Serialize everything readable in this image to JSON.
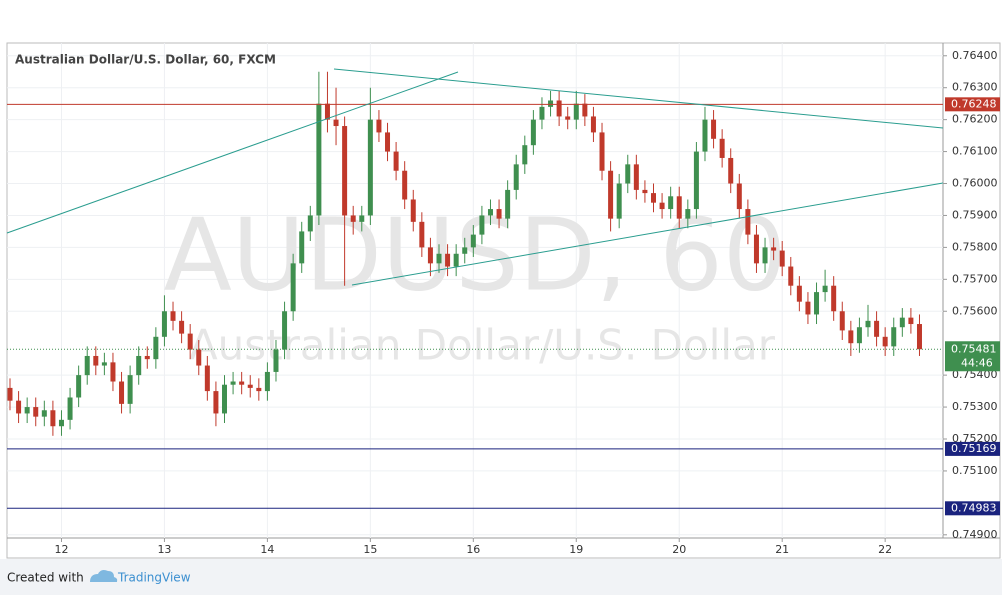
{
  "chart_data": {
    "type": "candlestick",
    "title": "Australian Dollar/U.S. Dollar, 60, FXCM",
    "watermark": "AUDUSD, 60",
    "watermark_subtitle": "Australian Dollar/U.S. Dollar",
    "countdown": "44:46",
    "footer_text": "Created with",
    "footer_brand": "TradingView",
    "up_color": "#3f8f4f",
    "down_color": "#c0392b",
    "categories": [
      null,
      null,
      null,
      null,
      null,
      null,
      "12",
      null,
      null,
      null,
      null,
      null,
      null,
      null,
      null,
      null,
      null,
      null,
      "13",
      null,
      null,
      null,
      null,
      null,
      null,
      null,
      null,
      null,
      null,
      null,
      "14",
      null,
      null,
      null,
      null,
      null,
      null,
      null,
      null,
      null,
      null,
      null,
      "15",
      null,
      null,
      null,
      null,
      null,
      null,
      null,
      null,
      null,
      null,
      null,
      "16",
      null,
      null,
      null,
      null,
      null,
      null,
      null,
      null,
      null,
      null,
      null,
      "19",
      null,
      null,
      null,
      null,
      null,
      null,
      null,
      null,
      null,
      null,
      null,
      "20",
      null,
      null,
      null,
      null,
      null,
      null,
      null,
      null,
      null,
      null,
      null,
      "21",
      null,
      null,
      null,
      null,
      null,
      null,
      null,
      null,
      null,
      null,
      null,
      "22",
      null,
      null,
      null,
      null
    ],
    "open": [
      0.7536,
      0.7532,
      0.7528,
      0.753,
      0.7527,
      0.7529,
      0.7524,
      0.7526,
      0.7533,
      0.754,
      0.7546,
      0.7543,
      0.7544,
      0.7538,
      0.7531,
      0.754,
      0.7546,
      0.7545,
      0.7552,
      0.756,
      0.7557,
      0.7553,
      0.7548,
      0.7543,
      0.7535,
      0.7528,
      0.7537,
      0.7538,
      0.7537,
      0.7536,
      0.7535,
      0.7541,
      0.7548,
      0.756,
      0.7575,
      0.7585,
      0.759,
      0.7625,
      0.762,
      0.7618,
      0.759,
      0.7588,
      0.759,
      0.762,
      0.7616,
      0.761,
      0.7604,
      0.7595,
      0.7588,
      0.758,
      0.7575,
      0.7578,
      0.7574,
      0.7578,
      0.758,
      0.7584,
      0.759,
      0.7592,
      0.7589,
      0.7598,
      0.7606,
      0.7612,
      0.762,
      0.7624,
      0.7626,
      0.7621,
      0.762,
      0.7625,
      0.7621,
      0.7616,
      0.7604,
      0.7589,
      0.76,
      0.7606,
      0.7598,
      0.7597,
      0.7594,
      0.7592,
      0.7596,
      0.7589,
      0.7592,
      0.761,
      0.762,
      0.7614,
      0.7608,
      0.76,
      0.7592,
      0.7584,
      0.7575,
      0.758,
      0.7579,
      0.7574,
      0.7568,
      0.7563,
      0.7559,
      0.7566,
      0.7568,
      0.756,
      0.7554,
      0.755,
      0.7555,
      0.7557,
      0.7552,
      0.7549,
      0.7555,
      0.7558,
      0.7556
    ],
    "high": [
      0.7539,
      0.7535,
      0.7533,
      0.7533,
      0.7532,
      0.7532,
      0.7529,
      0.7536,
      0.7543,
      0.7549,
      0.7549,
      0.7547,
      0.7547,
      0.7541,
      0.7543,
      0.7549,
      0.7549,
      0.7555,
      0.7565,
      0.7563,
      0.756,
      0.7556,
      0.7551,
      0.7546,
      0.7538,
      0.754,
      0.7541,
      0.7541,
      0.754,
      0.7539,
      0.7544,
      0.7551,
      0.7563,
      0.7578,
      0.7588,
      0.7593,
      0.7635,
      0.7635,
      0.763,
      0.7621,
      0.7593,
      0.7593,
      0.763,
      0.7623,
      0.7619,
      0.7613,
      0.7607,
      0.7598,
      0.7591,
      0.7583,
      0.7581,
      0.7581,
      0.7581,
      0.7583,
      0.7587,
      0.7593,
      0.7595,
      0.7595,
      0.7601,
      0.7609,
      0.7615,
      0.7623,
      0.7627,
      0.7629,
      0.7629,
      0.7624,
      0.7629,
      0.7628,
      0.7624,
      0.7619,
      0.7607,
      0.7603,
      0.7609,
      0.7609,
      0.7601,
      0.76,
      0.7597,
      0.7599,
      0.7599,
      0.7595,
      0.7613,
      0.7624,
      0.7623,
      0.7617,
      0.7611,
      0.7603,
      0.7595,
      0.7587,
      0.7583,
      0.7583,
      0.7582,
      0.7577,
      0.7571,
      0.7566,
      0.7569,
      0.7573,
      0.7571,
      0.7563,
      0.7557,
      0.7558,
      0.7562,
      0.756,
      0.7555,
      0.7558,
      0.7561,
      0.7561,
      0.7559
    ],
    "low": [
      0.7529,
      0.7525,
      0.7525,
      0.7524,
      0.7524,
      0.7521,
      0.7521,
      0.7523,
      0.753,
      0.7537,
      0.754,
      0.754,
      0.7535,
      0.7528,
      0.7528,
      0.7537,
      0.7542,
      0.7542,
      0.7549,
      0.7554,
      0.755,
      0.7545,
      0.754,
      0.7532,
      0.7524,
      0.7525,
      0.7534,
      0.7534,
      0.7533,
      0.7532,
      0.7532,
      0.7538,
      0.7545,
      0.7557,
      0.7572,
      0.7582,
      0.7587,
      0.7616,
      0.7612,
      0.7568,
      0.7584,
      0.7585,
      0.7587,
      0.7613,
      0.7607,
      0.7601,
      0.7592,
      0.7585,
      0.7577,
      0.7571,
      0.7572,
      0.7571,
      0.7571,
      0.7575,
      0.7577,
      0.7581,
      0.7587,
      0.7586,
      0.7586,
      0.7595,
      0.7603,
      0.7609,
      0.7617,
      0.7621,
      0.7618,
      0.7617,
      0.7617,
      0.7618,
      0.7613,
      0.7601,
      0.7585,
      0.7586,
      0.7597,
      0.7595,
      0.7594,
      0.7591,
      0.7589,
      0.7589,
      0.7586,
      0.7586,
      0.7589,
      0.7607,
      0.7611,
      0.7605,
      0.7597,
      0.7589,
      0.7581,
      0.7572,
      0.7572,
      0.7576,
      0.7571,
      0.7565,
      0.756,
      0.7556,
      0.7556,
      0.7563,
      0.7557,
      0.7551,
      0.7546,
      0.7547,
      0.7552,
      0.7549,
      0.7546,
      0.7546,
      0.7552,
      0.7553,
      0.7546
    ],
    "close": [
      0.7532,
      0.7528,
      0.753,
      0.7527,
      0.7529,
      0.7524,
      0.7526,
      0.7533,
      0.754,
      0.7546,
      0.7543,
      0.7544,
      0.7538,
      0.7531,
      0.754,
      0.7546,
      0.7545,
      0.7552,
      0.756,
      0.7557,
      0.7553,
      0.7548,
      0.7543,
      0.7535,
      0.7528,
      0.7537,
      0.7538,
      0.7537,
      0.7536,
      0.7535,
      0.7541,
      0.7548,
      0.756,
      0.7575,
      0.7585,
      0.759,
      0.7625,
      0.762,
      0.7618,
      0.759,
      0.7588,
      0.759,
      0.762,
      0.7616,
      0.761,
      0.7604,
      0.7595,
      0.7588,
      0.758,
      0.7575,
      0.7578,
      0.7574,
      0.7578,
      0.758,
      0.7584,
      0.759,
      0.7592,
      0.7589,
      0.7598,
      0.7606,
      0.7612,
      0.762,
      0.7624,
      0.7626,
      0.7621,
      0.762,
      0.7625,
      0.7621,
      0.7616,
      0.7604,
      0.7589,
      0.76,
      0.7606,
      0.7598,
      0.7597,
      0.7594,
      0.7592,
      0.7596,
      0.7589,
      0.7592,
      0.761,
      0.762,
      0.7614,
      0.7608,
      0.76,
      0.7592,
      0.7584,
      0.7575,
      0.758,
      0.7579,
      0.7574,
      0.7568,
      0.7563,
      0.7559,
      0.7566,
      0.7568,
      0.756,
      0.7554,
      0.755,
      0.7555,
      0.7557,
      0.7552,
      0.7549,
      0.7555,
      0.7558,
      0.7556,
      0.75481
    ],
    "levels": [
      0.76248,
      0.75169,
      0.74983
    ],
    "level_colors": [
      "#c0392b",
      "#1a237e",
      "#1a237e"
    ],
    "ylim": [
      0.7489,
      0.7644
    ],
    "yticks": [
      {
        "value": 0.764,
        "label": "0.76400"
      },
      {
        "value": 0.763,
        "label": "0.76300"
      },
      {
        "value": 0.762,
        "label": "0.76200"
      },
      {
        "value": 0.761,
        "label": "0.76100"
      },
      {
        "value": 0.76,
        "label": "0.76000"
      },
      {
        "value": 0.759,
        "label": "0.75900"
      },
      {
        "value": 0.758,
        "label": "0.75800"
      },
      {
        "value": 0.757,
        "label": "0.75700"
      },
      {
        "value": 0.756,
        "label": "0.75600"
      },
      {
        "value": 0.754,
        "label": "0.75400"
      },
      {
        "value": 0.753,
        "label": "0.75300"
      },
      {
        "value": 0.752,
        "label": "0.75200"
      },
      {
        "value": 0.751,
        "label": "0.75100"
      },
      {
        "value": 0.749,
        "label": "0.74900"
      }
    ],
    "grid": true
  }
}
